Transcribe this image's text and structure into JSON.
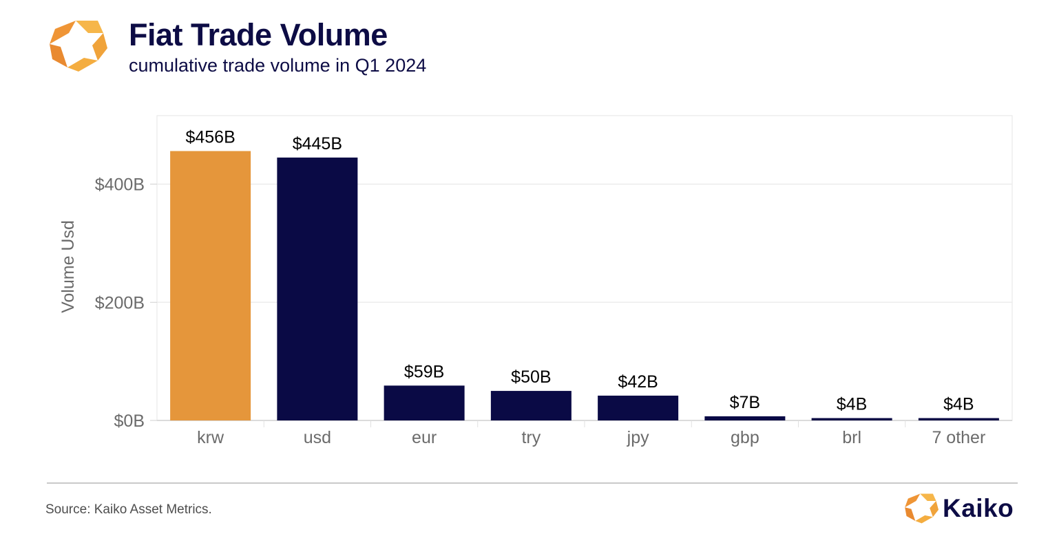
{
  "header": {
    "title": "Fiat Trade Volume",
    "subtitle": "cumulative trade volume in Q1 2024"
  },
  "footer": {
    "source": "Source: Kaiko Asset Metrics.",
    "brand": "Kaiko"
  },
  "colors": {
    "highlight": "#e5963b",
    "bar": "#0a0a45",
    "title": "#0d0c45",
    "axis_text": "#6b6b6b",
    "gridline": "#ececec"
  },
  "chart_data": {
    "type": "bar",
    "title": "",
    "xlabel": "",
    "ylabel": "Volume Usd",
    "categories": [
      "krw",
      "usd",
      "eur",
      "try",
      "jpy",
      "gbp",
      "brl",
      "7 other"
    ],
    "values": [
      456,
      445,
      59,
      50,
      42,
      7,
      4,
      4
    ],
    "value_labels": [
      "$456B",
      "$445B",
      "$59B",
      "$50B",
      "$42B",
      "$7B",
      "$4B",
      "$4B"
    ],
    "highlighted_category": "krw",
    "ylim": [
      0,
      516
    ],
    "yticks": [
      0,
      200,
      400
    ],
    "ytick_labels": [
      "$0B",
      "$200B",
      "$400B"
    ],
    "unit": "billion USD",
    "grid": true,
    "legend": "none"
  }
}
